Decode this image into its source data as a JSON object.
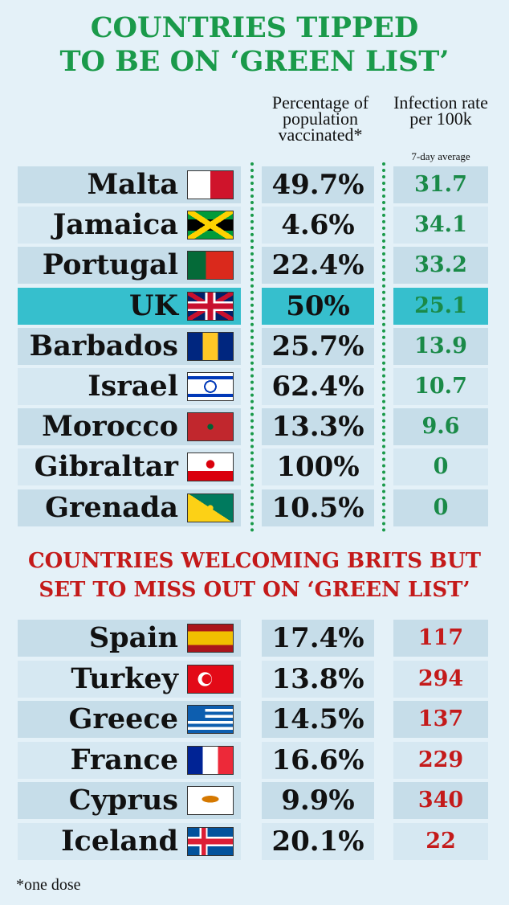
{
  "title": [
    "COUNTRIES TIPPED",
    "TO BE ON ‘GREEN LIST’"
  ],
  "header": {
    "vaccinated": "Percentage of population vaccinated*",
    "rate": "Infection rate per 100k",
    "rate_note": "7-day average"
  },
  "green_list": {
    "rows": [
      {
        "country": "Malta",
        "vaccinated": "49.7%",
        "rate": "31.7"
      },
      {
        "country": "Jamaica",
        "vaccinated": "4.6%",
        "rate": "34.1"
      },
      {
        "country": "Portugal",
        "vaccinated": "22.4%",
        "rate": "33.2"
      },
      {
        "country": "UK",
        "vaccinated": "50%",
        "rate": "25.1"
      },
      {
        "country": "Barbados",
        "vaccinated": "25.7%",
        "rate": "13.9"
      },
      {
        "country": "Israel",
        "vaccinated": "62.4%",
        "rate": "10.7"
      },
      {
        "country": "Morocco",
        "vaccinated": "13.3%",
        "rate": "9.6"
      },
      {
        "country": "Gibraltar",
        "vaccinated": "100%",
        "rate": "0"
      },
      {
        "country": "Grenada",
        "vaccinated": "10.5%",
        "rate": "0"
      }
    ]
  },
  "subtitle": [
    "COUNTRIES WELCOMING BRITS BUT",
    "SET TO MISS OUT ON ‘GREEN LIST’"
  ],
  "other_list": {
    "rows": [
      {
        "country": "Spain",
        "vaccinated": "17.4%",
        "rate": "117"
      },
      {
        "country": "Turkey",
        "vaccinated": "13.8%",
        "rate": "294"
      },
      {
        "country": "Greece",
        "vaccinated": "14.5%",
        "rate": "137"
      },
      {
        "country": "France",
        "vaccinated": "16.6%",
        "rate": "229"
      },
      {
        "country": "Cyprus",
        "vaccinated": "9.9%",
        "rate": "340"
      },
      {
        "country": "Iceland",
        "vaccinated": "20.1%",
        "rate": "22"
      }
    ]
  },
  "footnote": "*one dose"
}
